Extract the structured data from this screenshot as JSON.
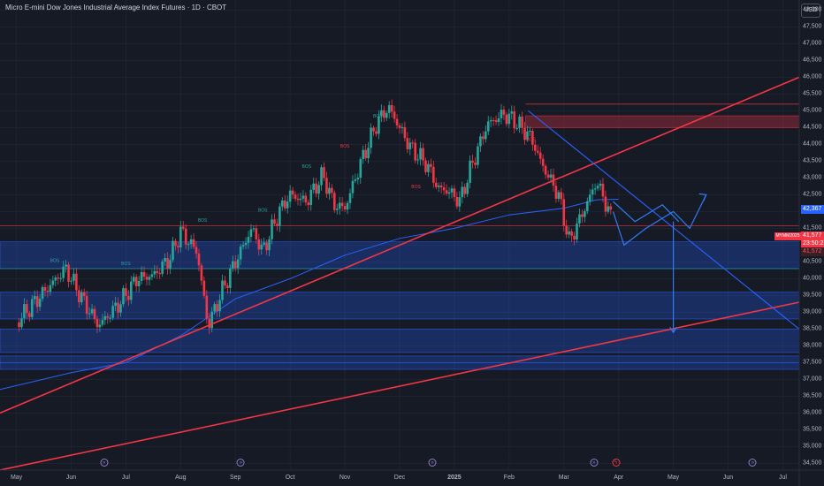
{
  "header": {
    "title": "Micro E-mini Dow Jones Industrial Average Index Futures · 1D · CBOT",
    "currency": "USD"
  },
  "price_tags": {
    "blue": "42,367",
    "symbol": "MYMM2025",
    "red_price": "41,577",
    "red_countdown": "23:50:22",
    "low": "41,572"
  },
  "chart_data": {
    "type": "candlestick",
    "y_ticks": [
      48000,
      47500,
      47000,
      46500,
      46000,
      45500,
      45000,
      44500,
      44000,
      43500,
      43000,
      42500,
      42000,
      41500,
      41000,
      40500,
      40000,
      39500,
      39000,
      38500,
      38000,
      37500,
      37000,
      36500,
      36000,
      35500,
      35000,
      34500
    ],
    "y_tick_labels": [
      "48,000",
      "47,500",
      "47,000",
      "46,500",
      "46,000",
      "45,500",
      "45,000",
      "44,500",
      "44,000",
      "43,500",
      "43,000",
      "42,500",
      "42,000",
      "41,500",
      "41,000",
      "40,500",
      "40,000",
      "39,500",
      "39,000",
      "38,500",
      "38,000",
      "37,500",
      "37,000",
      "36,500",
      "36,000",
      "35,500",
      "35,000",
      "34,500"
    ],
    "ylim": [
      34300,
      48300
    ],
    "x_labels": [
      "May",
      "Jun",
      "Jul",
      "Aug",
      "Sep",
      "Oct",
      "Nov",
      "Dec",
      "2025",
      "Feb",
      "Mar",
      "Apr",
      "May",
      "Jun",
      "Jul"
    ],
    "x_label_months": [
      0,
      1,
      2,
      3,
      4,
      5,
      6,
      7,
      8,
      9,
      10,
      11,
      12,
      13,
      14
    ],
    "xlim_months": [
      -0.3,
      14.3
    ],
    "price_path": [
      [
        0.0,
        38700
      ],
      [
        0.5,
        39600
      ],
      [
        0.9,
        40300
      ],
      [
        1.2,
        39400
      ],
      [
        1.5,
        38600
      ],
      [
        1.9,
        39300
      ],
      [
        2.2,
        40000
      ],
      [
        2.5,
        40100
      ],
      [
        2.8,
        40600
      ],
      [
        3.0,
        41400
      ],
      [
        3.3,
        40800
      ],
      [
        3.5,
        38600
      ],
      [
        3.8,
        39800
      ],
      [
        4.0,
        40500
      ],
      [
        4.3,
        41500
      ],
      [
        4.5,
        40800
      ],
      [
        4.8,
        42000
      ],
      [
        5.0,
        42500
      ],
      [
        5.3,
        42300
      ],
      [
        5.6,
        43100
      ],
      [
        5.8,
        42200
      ],
      [
        6.0,
        42100
      ],
      [
        6.3,
        43500
      ],
      [
        6.6,
        44700
      ],
      [
        6.8,
        45100
      ],
      [
        7.0,
        44500
      ],
      [
        7.2,
        43900
      ],
      [
        7.5,
        43400
      ],
      [
        7.7,
        42700
      ],
      [
        7.9,
        42600
      ],
      [
        8.1,
        42300
      ],
      [
        8.3,
        43300
      ],
      [
        8.6,
        44600
      ],
      [
        8.9,
        44900
      ],
      [
        9.1,
        44700
      ],
      [
        9.4,
        44200
      ],
      [
        9.6,
        43400
      ],
      [
        9.9,
        42500
      ],
      [
        10.1,
        41100
      ],
      [
        10.3,
        41800
      ],
      [
        10.6,
        42900
      ],
      [
        10.8,
        42100
      ],
      [
        10.9,
        41600
      ]
    ],
    "horizontal_levels": [
      {
        "y": 45200,
        "color": "#f23645"
      },
      {
        "y": 41577,
        "color": "#f23645"
      },
      {
        "y": 40300,
        "color": "#26a69a"
      },
      {
        "y": 37500,
        "color": "#2962ff"
      }
    ],
    "zones": [
      {
        "y0": 40300,
        "y1": 41100,
        "color": "#2962ff"
      },
      {
        "y0": 38800,
        "y1": 39600,
        "color": "#2962ff"
      },
      {
        "y0": 37800,
        "y1": 38500,
        "color": "#2962ff"
      },
      {
        "y0": 37300,
        "y1": 37700,
        "color": "#2962ff"
      },
      {
        "y0": 44500,
        "y1": 44850,
        "color": "#f23645"
      }
    ],
    "trendlines": [
      {
        "from": [
          -0.3,
          36000
        ],
        "to": [
          14.3,
          46000
        ],
        "color": "#f23645"
      },
      {
        "from": [
          -0.3,
          34300
        ],
        "to": [
          14.3,
          39300
        ],
        "color": "#f23645"
      },
      {
        "from": [
          9.35,
          45000
        ],
        "to": [
          14.3,
          38500
        ],
        "color": "#2962ff"
      }
    ],
    "moving_average": [
      [
        -0.3,
        36700
      ],
      [
        1,
        37200
      ],
      [
        2,
        37500
      ],
      [
        3,
        38300
      ],
      [
        4,
        39400
      ],
      [
        5,
        40000
      ],
      [
        6,
        40700
      ],
      [
        7,
        41200
      ],
      [
        8,
        41500
      ],
      [
        9,
        41900
      ],
      [
        10,
        42100
      ],
      [
        10.6,
        42350
      ],
      [
        11,
        42367
      ]
    ],
    "projection_path": [
      [
        10.9,
        42000
      ],
      [
        11.1,
        41000
      ],
      [
        11.5,
        41500
      ],
      [
        12.0,
        42000
      ],
      [
        12.3,
        41500
      ],
      [
        12.6,
        42500
      ]
    ],
    "projection_path_2": [
      [
        10.9,
        42300
      ],
      [
        11.3,
        41700
      ],
      [
        11.8,
        42200
      ],
      [
        12.1,
        41700
      ]
    ],
    "drop_arrow": [
      [
        12.0,
        41700
      ],
      [
        12.0,
        38400
      ]
    ],
    "annotations": [
      {
        "text": "BOS",
        "month": 0.7,
        "y": 40500,
        "color": "#26a69a"
      },
      {
        "text": "BOS",
        "month": 2.0,
        "y": 40400,
        "color": "#26a69a"
      },
      {
        "text": "BOS",
        "month": 3.4,
        "y": 41700,
        "color": "#26a69a"
      },
      {
        "text": "BOS",
        "month": 4.5,
        "y": 42000,
        "color": "#26a69a"
      },
      {
        "text": "BOS",
        "month": 5.3,
        "y": 43300,
        "color": "#26a69a"
      },
      {
        "text": "BOS",
        "month": 6.0,
        "y": 43900,
        "color": "#f23645"
      },
      {
        "text": "BOS",
        "month": 6.6,
        "y": 44800,
        "color": "#26a69a"
      },
      {
        "text": "BOS",
        "month": 7.3,
        "y": 42700,
        "color": "#f23645"
      },
      {
        "text": "BOS",
        "month": 9.4,
        "y": 44100,
        "color": "#f23645"
      }
    ],
    "event_markers": [
      {
        "month": 1.6,
        "label": "»",
        "color": "purple"
      },
      {
        "month": 4.1,
        "label": "»",
        "color": "purple"
      },
      {
        "month": 7.6,
        "label": "»",
        "color": "purple"
      },
      {
        "month": 10.55,
        "label": "»",
        "color": "purple"
      },
      {
        "month": 10.95,
        "label": "ϟ",
        "color": "red"
      },
      {
        "month": 13.45,
        "label": "»",
        "color": "purple"
      }
    ]
  }
}
